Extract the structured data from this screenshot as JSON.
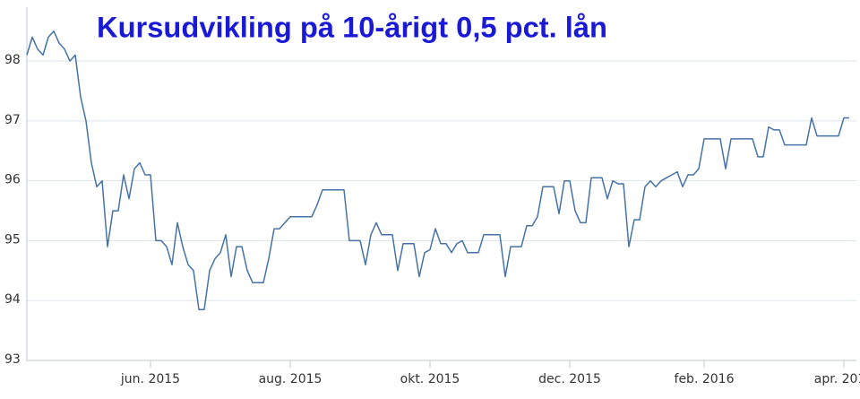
{
  "chart_data": {
    "type": "line",
    "title": "Kursudvikling på 10-årigt 0,5 pct. lån",
    "categories": [
      null,
      null,
      null,
      null,
      null,
      null,
      null,
      null,
      null,
      null,
      null,
      null,
      null,
      null,
      null,
      null,
      null,
      null,
      null,
      null,
      null,
      null,
      null,
      "jun. 2015",
      null,
      null,
      null,
      null,
      null,
      null,
      null,
      null,
      null,
      null,
      null,
      null,
      null,
      null,
      null,
      null,
      null,
      null,
      null,
      null,
      null,
      null,
      null,
      null,
      null,
      "aug. 2015",
      null,
      null,
      null,
      null,
      null,
      null,
      null,
      null,
      null,
      null,
      null,
      null,
      null,
      null,
      null,
      null,
      null,
      null,
      null,
      null,
      null,
      null,
      null,
      null,
      null,
      "okt. 2015",
      null,
      null,
      null,
      null,
      null,
      null,
      null,
      null,
      null,
      null,
      null,
      null,
      null,
      null,
      null,
      null,
      null,
      null,
      null,
      null,
      null,
      null,
      null,
      null,
      null,
      "dec. 2015",
      null,
      null,
      null,
      null,
      null,
      null,
      null,
      null,
      null,
      null,
      null,
      null,
      null,
      null,
      null,
      null,
      null,
      null,
      null,
      null,
      null,
      null,
      null,
      null,
      "feb. 2016",
      null,
      null,
      null,
      null,
      null,
      null,
      null,
      null,
      null,
      null,
      null,
      null,
      null,
      null,
      null,
      null,
      null,
      null,
      null,
      null,
      null,
      null,
      null,
      null,
      null,
      "apr. 2016",
      null
    ],
    "series": [
      {
        "color": "#4572a7",
        "values": [
          98.1,
          98.4,
          98.2,
          98.1,
          98.4,
          98.5,
          98.3,
          98.2,
          98,
          98.1,
          97.4,
          97,
          96.3,
          95.9,
          96,
          94.9,
          95.5,
          95.5,
          96.1,
          95.7,
          96.2,
          96.3,
          96.1,
          96.1,
          95,
          95,
          94.9,
          94.6,
          95.3,
          94.9,
          94.6,
          94.5,
          93.85,
          93.85,
          94.5,
          94.7,
          94.8,
          95.1,
          94.4,
          94.9,
          94.9,
          94.5,
          94.3,
          94.3,
          94.3,
          94.7,
          95.2,
          95.2,
          95.3,
          95.4,
          95.4,
          95.4,
          95.4,
          95.4,
          95.6,
          95.85,
          95.85,
          95.85,
          95.85,
          95.85,
          95,
          95,
          95,
          94.6,
          95.1,
          95.3,
          95.1,
          95.1,
          95.1,
          94.5,
          94.95,
          94.95,
          94.95,
          94.4,
          94.8,
          94.85,
          95.2,
          94.95,
          94.95,
          94.8,
          94.95,
          95,
          94.8,
          94.8,
          94.8,
          95.1,
          95.1,
          95.1,
          95.1,
          94.4,
          94.9,
          94.9,
          94.9,
          95.25,
          95.25,
          95.4,
          95.9,
          95.9,
          95.9,
          95.45,
          96,
          96,
          95.5,
          95.3,
          95.3,
          96.05,
          96.05,
          96.05,
          95.7,
          96,
          95.95,
          95.95,
          94.9,
          95.35,
          95.35,
          95.9,
          96,
          95.9,
          96,
          96.05,
          96.1,
          96.15,
          95.9,
          96.1,
          96.1,
          96.2,
          96.7,
          96.7,
          96.7,
          96.7,
          96.2,
          96.7,
          96.7,
          96.7,
          96.7,
          96.7,
          96.4,
          96.4,
          96.9,
          96.85,
          96.85,
          96.6,
          96.6,
          96.6,
          96.6,
          96.6,
          97.05,
          96.75,
          96.75,
          96.75,
          96.75,
          96.75,
          97.05,
          97.05
        ]
      }
    ],
    "ylim": [
      93,
      98.9
    ],
    "yticks": [
      93,
      94,
      95,
      96,
      97,
      98
    ],
    "grid": true,
    "title_color": "#1a1ad6"
  }
}
